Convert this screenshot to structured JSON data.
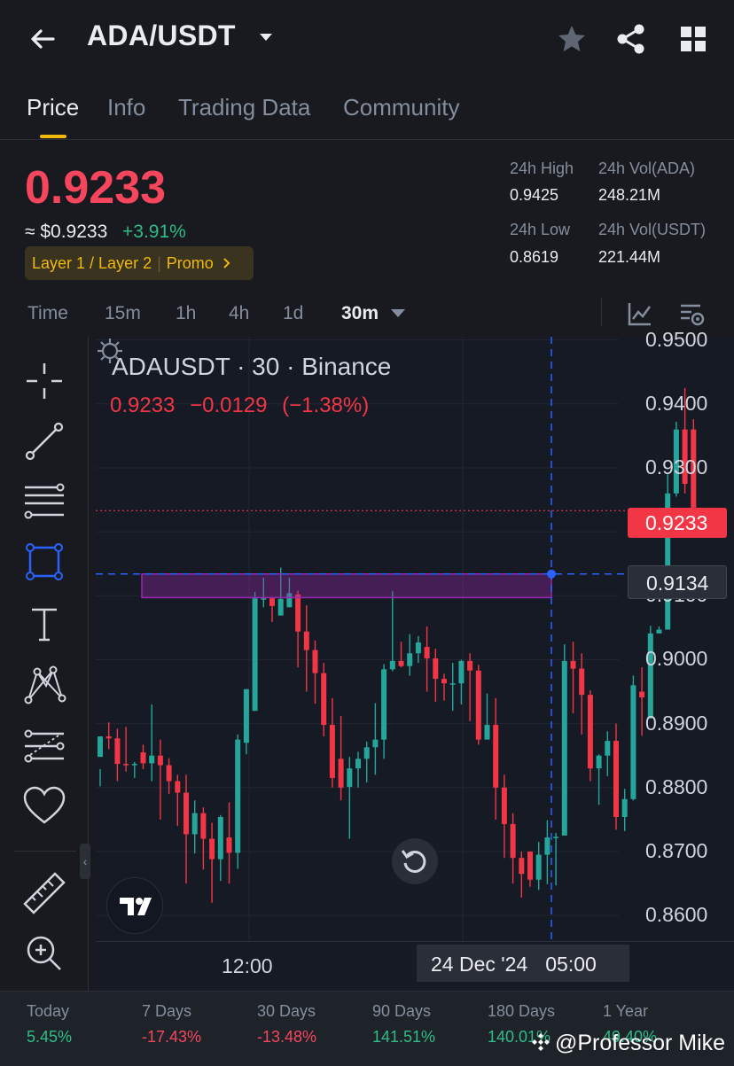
{
  "header": {
    "pair": "ADA/USDT",
    "icons": [
      "back-arrow-icon",
      "dropdown-caret-icon",
      "star-icon",
      "share-icon",
      "grid-icon"
    ]
  },
  "tabs": [
    {
      "label": "Price",
      "active": true
    },
    {
      "label": "Info",
      "active": false
    },
    {
      "label": "Trading Data",
      "active": false
    },
    {
      "label": "Community",
      "active": false
    }
  ],
  "ticker": {
    "last_price": "0.9233",
    "usd_price": "≈ $0.9233",
    "change_pct": "+3.91%",
    "tags": [
      "Layer 1 / Layer 2",
      "Promo"
    ],
    "high_label": "24h High",
    "high_value": "0.9425",
    "vol_base_label": "24h Vol(ADA)",
    "vol_base_value": "248.21M",
    "low_label": "24h Low",
    "low_value": "0.8619",
    "vol_quote_label": "24h Vol(USDT)",
    "vol_quote_value": "221.44M"
  },
  "intervals": {
    "items": [
      "Time",
      "15m",
      "1h",
      "4h",
      "1d",
      "30m"
    ],
    "selected": "30m"
  },
  "chart": {
    "symbol_line": "ADAUSDT · 30 · Binance",
    "ohlc_price": "0.9233",
    "ohlc_change": "−0.0129",
    "ohlc_change_pct": "(−1.38%)",
    "y_ticks": [
      "0.9500",
      "0.9400",
      "0.9300",
      "0.9200",
      "0.9100",
      "0.9000",
      "0.8900",
      "0.8800",
      "0.8700",
      "0.8600"
    ],
    "last_price_tag": "0.9233",
    "crosshair_price": "0.9134",
    "x_tick": "12:00",
    "crosshair_date": "24 Dec '24",
    "crosshair_time": "05:00",
    "colors": {
      "up": "#26a69a",
      "down": "#f23645",
      "crosshair": "#2962ff",
      "zone": "#9c27b0"
    }
  },
  "chart_data": {
    "type": "candlestick",
    "title": "ADAUSDT · 30 · Binance",
    "ylim": [
      0.856,
      0.9505
    ],
    "y_ticks": [
      0.95,
      0.94,
      0.93,
      0.92,
      0.91,
      0.9,
      0.89,
      0.88,
      0.87,
      0.86
    ],
    "last_price": 0.9233,
    "crosshair_price": 0.9134,
    "zone": {
      "low": 0.9097,
      "high": 0.9134
    },
    "candles": [
      [
        0.8848,
        0.888,
        0.8829,
        0.8802
      ],
      [
        0.888,
        0.8877,
        0.8902,
        0.886
      ],
      [
        0.8877,
        0.8837,
        0.8892,
        0.881
      ],
      [
        0.8837,
        0.8836,
        0.8895,
        0.8825
      ],
      [
        0.8836,
        0.8837,
        0.884,
        0.8815
      ],
      [
        0.8855,
        0.8838,
        0.8867,
        0.8829
      ],
      [
        0.8838,
        0.885,
        0.893,
        0.881
      ],
      [
        0.885,
        0.8835,
        0.8875,
        0.875
      ],
      [
        0.8835,
        0.881,
        0.8846,
        0.879
      ],
      [
        0.881,
        0.8792,
        0.882,
        0.874
      ],
      [
        0.8792,
        0.8727,
        0.882,
        0.865
      ],
      [
        0.8727,
        0.876,
        0.878,
        0.8697
      ],
      [
        0.876,
        0.872,
        0.8769,
        0.8672
      ],
      [
        0.872,
        0.8688,
        0.8745,
        0.862
      ],
      [
        0.8688,
        0.8754,
        0.8757,
        0.8654
      ],
      [
        0.8722,
        0.8698,
        0.8777,
        0.865
      ],
      [
        0.8698,
        0.8875,
        0.8883,
        0.8673
      ],
      [
        0.887,
        0.8954,
        0.895,
        0.8852
      ],
      [
        0.892,
        0.9096,
        0.9106,
        0.892
      ],
      [
        0.9096,
        0.9096,
        0.9128,
        0.9082
      ],
      [
        0.9096,
        0.9084,
        0.909,
        0.9059
      ],
      [
        0.9069,
        0.9095,
        0.9144,
        0.9072
      ],
      [
        0.9082,
        0.9104,
        0.9128,
        0.9082
      ],
      [
        0.9102,
        0.9044,
        0.9108,
        0.8988
      ],
      [
        0.9044,
        0.9015,
        0.9085,
        0.895
      ],
      [
        0.9015,
        0.8979,
        0.903,
        0.8931
      ],
      [
        0.8979,
        0.8898,
        0.8995,
        0.888
      ],
      [
        0.8898,
        0.8815,
        0.894,
        0.88
      ],
      [
        0.8845,
        0.88,
        0.8912,
        0.878
      ],
      [
        0.8801,
        0.883,
        0.8848,
        0.872
      ],
      [
        0.883,
        0.8845,
        0.8856,
        0.88
      ],
      [
        0.8845,
        0.8863,
        0.8872,
        0.8808
      ],
      [
        0.8863,
        0.8875,
        0.8932,
        0.882
      ],
      [
        0.8875,
        0.8985,
        0.8993,
        0.8845
      ],
      [
        0.8985,
        0.8998,
        0.9107,
        0.8982
      ],
      [
        0.8998,
        0.899,
        0.9028,
        0.8988
      ],
      [
        0.899,
        0.901,
        0.904,
        0.8975
      ],
      [
        0.901,
        0.9027,
        0.9037,
        0.8995
      ],
      [
        0.902,
        0.9002,
        0.9052,
        0.895
      ],
      [
        0.9002,
        0.897,
        0.9017,
        0.8934
      ],
      [
        0.897,
        0.8963,
        0.8978,
        0.8936
      ],
      [
        0.8963,
        0.8963,
        0.8995,
        0.892
      ],
      [
        0.8963,
        0.8998,
        0.9,
        0.893
      ],
      [
        0.8998,
        0.8983,
        0.901,
        0.8904
      ],
      [
        0.8983,
        0.8875,
        0.8992,
        0.8867
      ],
      [
        0.8875,
        0.8898,
        0.8947,
        0.8887
      ],
      [
        0.8898,
        0.88,
        0.894,
        0.875
      ],
      [
        0.88,
        0.8743,
        0.882,
        0.869
      ],
      [
        0.8743,
        0.869,
        0.876,
        0.865
      ],
      [
        0.869,
        0.8665,
        0.87,
        0.8628
      ],
      [
        0.87,
        0.8656,
        0.87,
        0.8645
      ],
      [
        0.8656,
        0.8695,
        0.8715,
        0.864
      ],
      [
        0.8695,
        0.8722,
        0.8749,
        0.8649
      ],
      [
        0.8722,
        0.8723,
        0.8729,
        0.8647
      ],
      [
        0.8725,
        0.8998,
        0.9024,
        0.8725
      ],
      [
        0.8998,
        0.8986,
        0.9028,
        0.8916
      ],
      [
        0.8986,
        0.8945,
        0.901,
        0.8883
      ],
      [
        0.8945,
        0.883,
        0.8952,
        0.881
      ],
      [
        0.883,
        0.885,
        0.8852,
        0.8773
      ],
      [
        0.885,
        0.8873,
        0.8888,
        0.8818
      ],
      [
        0.8873,
        0.8754,
        0.89,
        0.8734
      ],
      [
        0.8754,
        0.8782,
        0.8798,
        0.8732
      ],
      [
        0.8782,
        0.896,
        0.8975,
        0.878
      ],
      [
        0.895,
        0.8941,
        0.8988,
        0.8881
      ],
      [
        0.8908,
        0.9041,
        0.9053,
        0.8908
      ],
      [
        0.9041,
        0.9047,
        0.9052,
        0.9047
      ],
      [
        0.9047,
        0.926,
        0.929,
        0.9047
      ],
      [
        0.926,
        0.936,
        0.9372,
        0.9255
      ],
      [
        0.936,
        0.9275,
        0.9425,
        0.926
      ],
      [
        0.936,
        0.9233,
        0.9376,
        0.9233
      ]
    ]
  },
  "performance": [
    {
      "label": "Today",
      "value": "5.45%",
      "dir": "up"
    },
    {
      "label": "7 Days",
      "value": "-17.43%",
      "dir": "down"
    },
    {
      "label": "30 Days",
      "value": "-13.48%",
      "dir": "down"
    },
    {
      "label": "90 Days",
      "value": "141.51%",
      "dir": "up"
    },
    {
      "label": "180 Days",
      "value": "140.01%",
      "dir": "up"
    },
    {
      "label": "1 Year",
      "value": "49.40%",
      "dir": "up"
    }
  ],
  "watermark": "@Professor Mike"
}
